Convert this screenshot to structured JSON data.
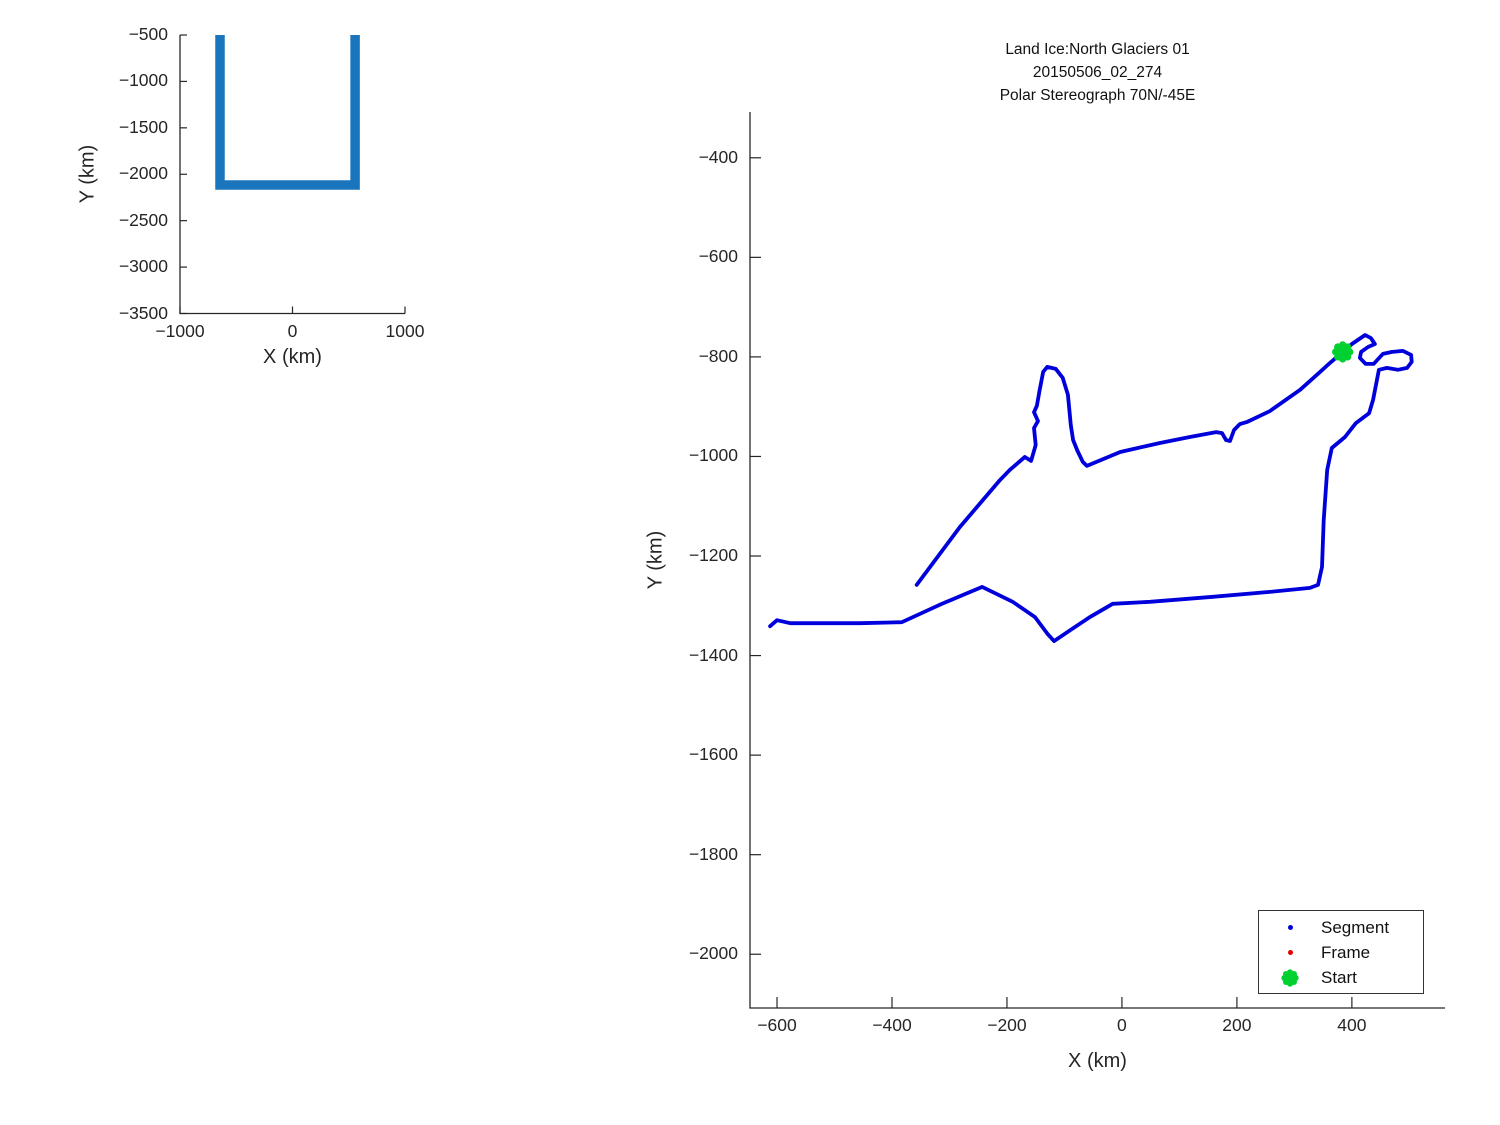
{
  "figure": {
    "background": "#ffffff",
    "axis_color": "#262626"
  },
  "chart_data": [
    {
      "id": "overview",
      "type": "line",
      "title": "",
      "xlabel": "X (km)",
      "ylabel": "Y (km)",
      "xlim": [
        -1000,
        1000
      ],
      "ylim": [
        -3500,
        -500
      ],
      "xticks": [
        -1000,
        0,
        1000
      ],
      "yticks": [
        -500,
        -1000,
        -1500,
        -2000,
        -2500,
        -3000,
        -3500
      ],
      "grid": false,
      "line_color": "#1b75bc",
      "line_width": 9.5,
      "points": [
        [
          -644,
          -500
        ],
        [
          -644,
          -2116
        ],
        [
          556,
          -2116
        ],
        [
          556,
          -500
        ]
      ]
    },
    {
      "id": "main",
      "type": "line",
      "title_lines": [
        "Land Ice:North Glaciers 01",
        "20150506_02_274",
        "Polar Stereograph 70N/-45E"
      ],
      "xlabel": "X (km)",
      "ylabel": "Y (km)",
      "xlim": [
        -647,
        562
      ],
      "ylim": [
        -2108,
        -308
      ],
      "xticks": [
        -600,
        -400,
        -200,
        0,
        200,
        400
      ],
      "yticks": [
        -400,
        -600,
        -800,
        -1000,
        -1200,
        -1400,
        -1600,
        -1800,
        -2000
      ],
      "grid": false,
      "segment_color": "#0000dd",
      "frame_color": "#e00000",
      "start_color": "#00d030",
      "line_width": 3.8,
      "start_point": [
        384,
        -790
      ],
      "segment_points": [
        [
          -612,
          -1341
        ],
        [
          -600,
          -1329
        ],
        [
          -577,
          -1335
        ],
        [
          -456,
          -1335
        ],
        [
          -383,
          -1333
        ],
        [
          -317,
          -1298
        ],
        [
          -243,
          -1262
        ],
        [
          -190,
          -1292
        ],
        [
          -151,
          -1323
        ],
        [
          -129,
          -1357
        ],
        [
          -118,
          -1371
        ],
        [
          -90,
          -1349
        ],
        [
          -56,
          -1323
        ],
        [
          -16,
          -1296
        ],
        [
          49,
          -1292
        ],
        [
          158,
          -1282
        ],
        [
          257,
          -1272
        ],
        [
          327,
          -1264
        ],
        [
          341,
          -1258
        ],
        [
          348,
          -1222
        ],
        [
          351,
          -1128
        ],
        [
          357,
          -1027
        ],
        [
          365,
          -983
        ],
        [
          388,
          -961
        ],
        [
          407,
          -933
        ],
        [
          430,
          -913
        ],
        [
          437,
          -886
        ],
        [
          442,
          -856
        ],
        [
          447,
          -826
        ],
        [
          461,
          -822
        ],
        [
          480,
          -826
        ],
        [
          496,
          -822
        ],
        [
          504,
          -810
        ],
        [
          503,
          -796
        ],
        [
          489,
          -788
        ],
        [
          470,
          -790
        ],
        [
          454,
          -794
        ],
        [
          438,
          -814
        ],
        [
          424,
          -814
        ],
        [
          414,
          -802
        ],
        [
          416,
          -790
        ],
        [
          428,
          -780
        ],
        [
          440,
          -774
        ],
        [
          433,
          -762
        ],
        [
          423,
          -756
        ],
        [
          400,
          -774
        ],
        [
          384,
          -790
        ],
        [
          362,
          -812
        ],
        [
          341,
          -834
        ],
        [
          310,
          -866
        ],
        [
          257,
          -909
        ],
        [
          217,
          -931
        ],
        [
          205,
          -935
        ],
        [
          195,
          -947
        ],
        [
          188,
          -969
        ],
        [
          181,
          -967
        ],
        [
          174,
          -953
        ],
        [
          164,
          -951
        ],
        [
          118,
          -961
        ],
        [
          66,
          -973
        ],
        [
          -3,
          -991
        ],
        [
          -61,
          -1019
        ],
        [
          -68,
          -1011
        ],
        [
          -78,
          -987
        ],
        [
          -85,
          -967
        ],
        [
          -89,
          -937
        ],
        [
          -94,
          -876
        ],
        [
          -103,
          -842
        ],
        [
          -115,
          -824
        ],
        [
          -130,
          -820
        ],
        [
          -137,
          -830
        ],
        [
          -143,
          -866
        ],
        [
          -148,
          -898
        ],
        [
          -153,
          -911
        ],
        [
          -146,
          -929
        ],
        [
          -153,
          -943
        ],
        [
          -150,
          -977
        ],
        [
          -158,
          -1009
        ],
        [
          -169,
          -1001
        ],
        [
          -195,
          -1027
        ],
        [
          -212,
          -1047
        ],
        [
          -282,
          -1142
        ],
        [
          -357,
          -1258
        ]
      ],
      "legend": [
        {
          "label": "Segment",
          "color": "#0000dd",
          "marker": "dot"
        },
        {
          "label": "Frame",
          "color": "#e00000",
          "marker": "dot"
        },
        {
          "label": "Start",
          "color": "#00d030",
          "marker": "burst"
        }
      ]
    }
  ]
}
